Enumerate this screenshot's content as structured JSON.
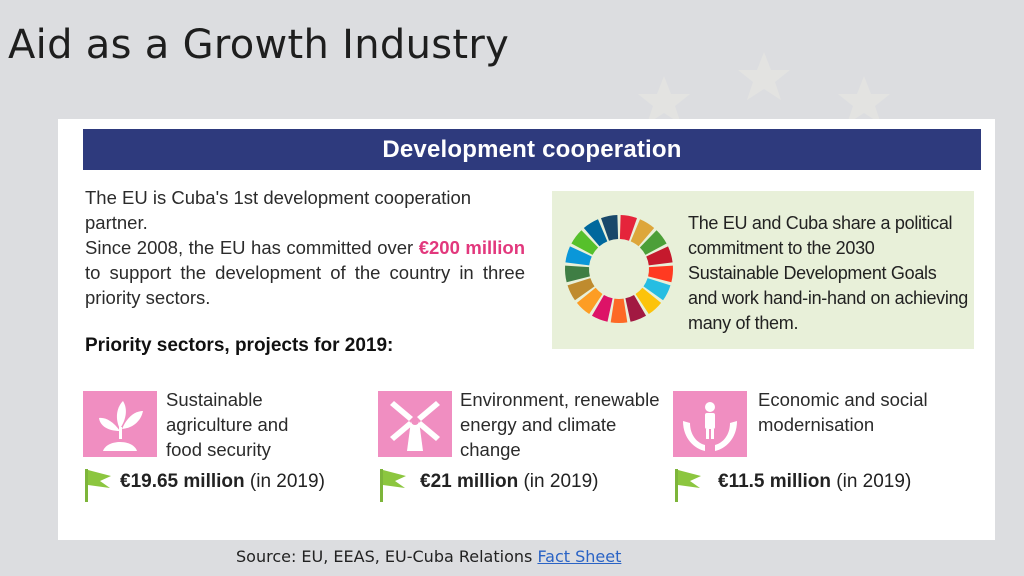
{
  "slide": {
    "title": "Aid as a Growth Industry"
  },
  "infographic": {
    "banner": "Development cooperation",
    "intro": {
      "line1": "The EU is Cuba's 1st development cooperation partner.",
      "line2_before": "Since 2008, the EU has committed over",
      "line2_highlight": "€200 million",
      "line2_after": "to support the development of the country in three priority sectors."
    },
    "sdg_text": "The EU and Cuba share a political commitment to the 2030 Sustainable Development Goals and work hand-in-hand on achieving many of them.",
    "sdg_wheel_colors": [
      "#e5243b",
      "#dda63a",
      "#4c9f38",
      "#c5192d",
      "#ff3a21",
      "#26bde2",
      "#fcc30b",
      "#a21942",
      "#fd6925",
      "#dd1367",
      "#fd9d24",
      "#bf8b2e",
      "#3f7e44",
      "#0a97d9",
      "#56c02b",
      "#00689d",
      "#19486a"
    ],
    "priority_title": "Priority sectors, projects for 2019:",
    "sectors": [
      {
        "icon": "plant-icon",
        "label": "Sustainable agriculture and food security",
        "amount": "€19.65 million",
        "year": "(in 2019)"
      },
      {
        "icon": "windmill-icon",
        "label": "Environment, renewable energy and climate change",
        "amount": "€21 million",
        "year": "(in 2019)"
      },
      {
        "icon": "hands-person-icon",
        "label": "Economic and social modernisation",
        "amount": "€11.5 million",
        "year": "(in 2019)"
      }
    ]
  },
  "source": {
    "prefix": "Source: EU, EEAS, EU-Cuba Relations",
    "link": "Fact Sheet"
  },
  "colors": {
    "banner": "#2e3a7d",
    "highlight": "#e2387d",
    "sdg_box": "#e8f0d9",
    "sector_icon": "#f08ec1",
    "flag": "#8cc63f"
  }
}
